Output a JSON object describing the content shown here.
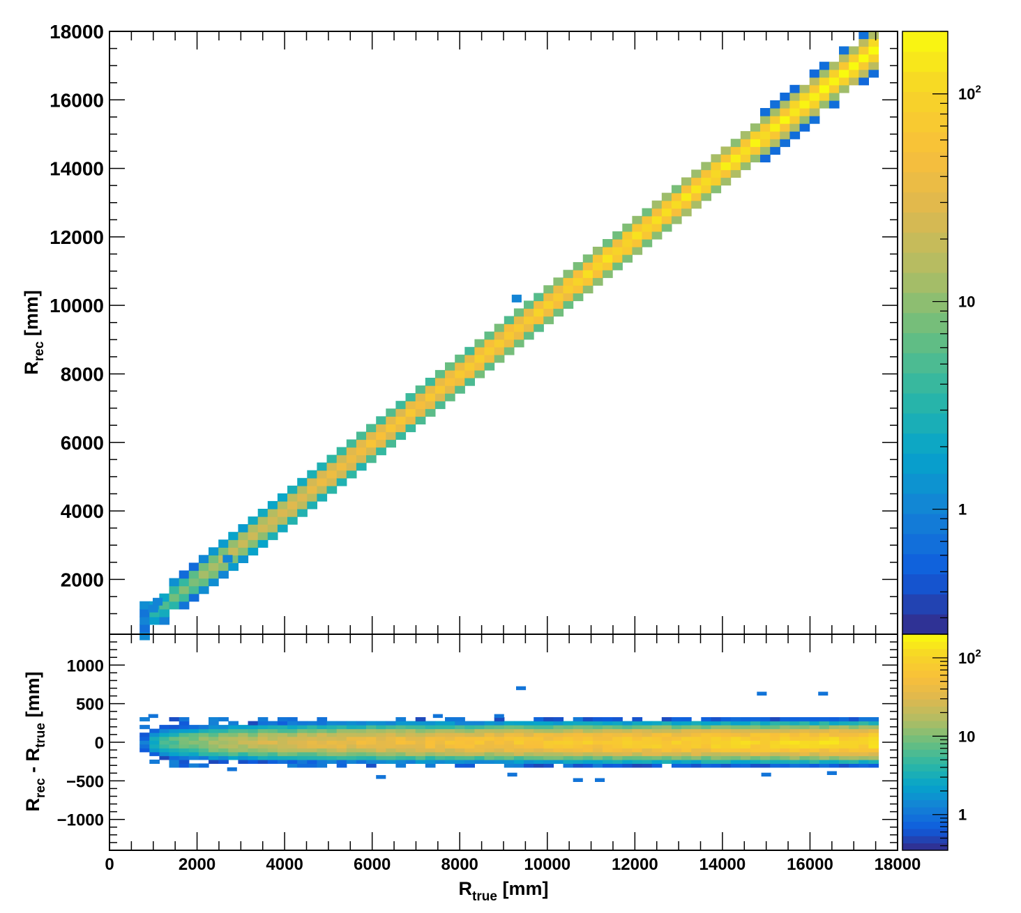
{
  "chart_data": [
    {
      "type": "heatmap",
      "panel": "top",
      "xlabel_base": "R",
      "xlabel_sub": "true",
      "xlabel_unit": " [mm]",
      "ylabel_base": "R",
      "ylabel_sub": "rec",
      "ylabel_unit": " [mm]",
      "xlim": [
        0,
        18000
      ],
      "ylim": [
        400,
        18000
      ],
      "yticks": [
        2000,
        4000,
        6000,
        8000,
        10000,
        12000,
        14000,
        16000,
        18000
      ],
      "ytick_labels": [
        "2000",
        "4000",
        "6000",
        "8000",
        "10000",
        "12000",
        "14000",
        "16000",
        "18000"
      ],
      "bin_width": 225,
      "color_scale": "log",
      "zlim": [
        0.25,
        200
      ],
      "colorbar_ticks": [
        {
          "value": 1,
          "label": "1"
        },
        {
          "value": 10,
          "label": "10"
        },
        {
          "value": 100,
          "label": "10",
          "sup": "2"
        }
      ],
      "band": {
        "x_from": 800,
        "x_to": 17600,
        "relation": "R_rec = R_true",
        "peak_count": 180
      },
      "stray_bins": [
        {
          "x": 9300,
          "y": 10200,
          "count": 1
        },
        {
          "x": 1000,
          "y": 1150,
          "count": 1
        },
        {
          "x": 1100,
          "y": 1350,
          "count": 1
        },
        {
          "x": 2700,
          "y": 2600,
          "count": 1
        }
      ]
    },
    {
      "type": "heatmap",
      "panel": "bottom",
      "xlabel_base": "R",
      "xlabel_sub": "true",
      "xlabel_unit": " [mm]",
      "ylabel_base": "R",
      "ylabel_sub1": "rec",
      "ylabel_mid": " - R",
      "ylabel_sub2": "true",
      "ylabel_unit": " [mm]",
      "xlim": [
        0,
        18000
      ],
      "ylim": [
        -1400,
        1400
      ],
      "xticks": [
        0,
        2000,
        4000,
        6000,
        8000,
        10000,
        12000,
        14000,
        16000,
        18000
      ],
      "xtick_labels": [
        "0",
        "2000",
        "4000",
        "6000",
        "8000",
        "10000",
        "12000",
        "14000",
        "16000",
        "18000"
      ],
      "yticks": [
        -1000,
        -500,
        0,
        500,
        1000
      ],
      "ytick_labels": [
        "−1000",
        "−500",
        "0",
        "500",
        "1000"
      ],
      "bin_width": 225,
      "bin_height": 50,
      "color_scale": "log",
      "zlim": [
        0.35,
        200
      ],
      "colorbar_ticks": [
        {
          "value": 1,
          "label": "1"
        },
        {
          "value": 10,
          "label": "10"
        },
        {
          "value": 100,
          "label": "10",
          "sup": "2"
        }
      ],
      "band": {
        "x_from": 800,
        "x_to": 17600,
        "center": 0,
        "half_width": 300,
        "peak_count": 120
      },
      "stray_bins": [
        {
          "x": 9400,
          "y": 700,
          "count": 1
        },
        {
          "x": 14900,
          "y": 630,
          "count": 1
        },
        {
          "x": 16300,
          "y": 630,
          "count": 1
        },
        {
          "x": 1000,
          "y": 340,
          "count": 1
        },
        {
          "x": 7500,
          "y": 340,
          "count": 1
        },
        {
          "x": 8900,
          "y": 340,
          "count": 1
        },
        {
          "x": 2800,
          "y": -350,
          "count": 1
        },
        {
          "x": 6200,
          "y": -450,
          "count": 1
        },
        {
          "x": 9200,
          "y": -420,
          "count": 1
        },
        {
          "x": 10700,
          "y": -490,
          "count": 1
        },
        {
          "x": 11200,
          "y": -490,
          "count": 1
        },
        {
          "x": 15000,
          "y": -420,
          "count": 1
        },
        {
          "x": 16500,
          "y": -400,
          "count": 1
        }
      ]
    }
  ]
}
